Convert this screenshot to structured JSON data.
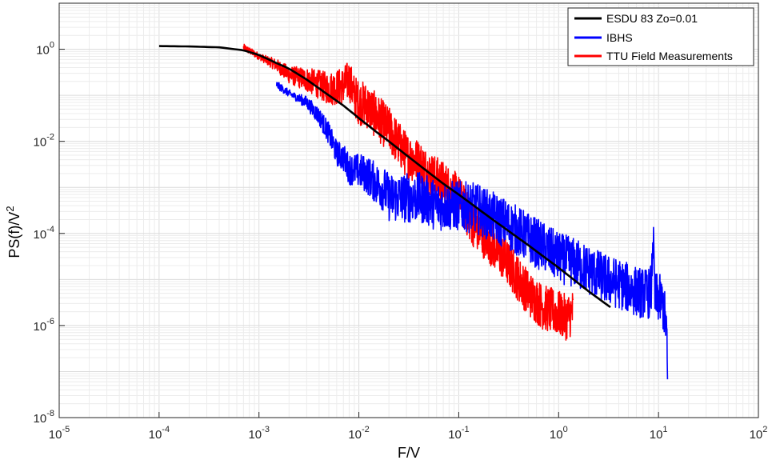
{
  "chart_data": {
    "type": "line",
    "title": "",
    "xlabel": "F/V",
    "ylabel_base": "PS(f)/V",
    "ylabel_sup": "2",
    "x_scale": "log",
    "y_scale": "log",
    "xlim": [
      1e-05,
      100
    ],
    "ylim": [
      1e-08,
      10
    ],
    "x_ticks": [
      {
        "base": "10",
        "exp": "-5",
        "value": 1e-05
      },
      {
        "base": "10",
        "exp": "-4",
        "value": 0.0001
      },
      {
        "base": "10",
        "exp": "-3",
        "value": 0.001
      },
      {
        "base": "10",
        "exp": "-2",
        "value": 0.01
      },
      {
        "base": "10",
        "exp": "-1",
        "value": 0.1
      },
      {
        "base": "10",
        "exp": "0",
        "value": 1
      },
      {
        "base": "10",
        "exp": "1",
        "value": 10
      },
      {
        "base": "10",
        "exp": "2",
        "value": 100
      }
    ],
    "y_ticks": [
      {
        "base": "10",
        "exp": "-8",
        "value": 1e-08
      },
      {
        "base": "10",
        "exp": "-6",
        "value": 1e-06
      },
      {
        "base": "10",
        "exp": "-4",
        "value": 0.0001
      },
      {
        "base": "10",
        "exp": "-2",
        "value": 0.01
      },
      {
        "base": "10",
        "exp": "0",
        "value": 1
      }
    ],
    "grid": true,
    "legend_position": "top-right",
    "series": [
      {
        "name": "ESDU 83 Zo=0.01",
        "color": "#000000",
        "noise": 0,
        "x": [
          0.0001,
          0.0002,
          0.0004,
          0.0007,
          0.001,
          0.0015,
          0.002,
          0.003,
          0.005,
          0.007,
          0.01,
          0.015,
          0.02,
          0.03,
          0.05,
          0.07,
          0.1,
          0.2,
          0.5,
          1,
          2,
          3.3
        ],
        "y": [
          1.17,
          1.15,
          1.1,
          0.95,
          0.75,
          0.5,
          0.38,
          0.22,
          0.1,
          0.06,
          0.032,
          0.016,
          0.01,
          0.005,
          0.0021,
          0.0012,
          0.0007,
          0.00023,
          5.5e-05,
          1.8e-05,
          5.5e-06,
          2.5e-06
        ]
      },
      {
        "name": "IBHS",
        "color": "#0000ff",
        "noise": 0.55,
        "x": [
          0.0015,
          0.002,
          0.003,
          0.004,
          0.005,
          0.006,
          0.007,
          0.008,
          0.01,
          0.012,
          0.015,
          0.018,
          0.02,
          0.025,
          0.03,
          0.04,
          0.05,
          0.06,
          0.08,
          0.1,
          0.15,
          0.2,
          0.3,
          0.5,
          0.7,
          1,
          1.5,
          2,
          3,
          4,
          5,
          6,
          7,
          8,
          8.5,
          8.8,
          9.2,
          10,
          11,
          12,
          12.3
        ],
        "y": [
          0.17,
          0.11,
          0.07,
          0.035,
          0.015,
          0.0055,
          0.0045,
          0.0025,
          0.0023,
          0.0019,
          0.0012,
          0.0009,
          0.0006,
          0.0006,
          0.0006,
          0.0006,
          0.0005,
          0.0004,
          0.0004,
          0.0004,
          0.00035,
          0.00025,
          0.00016,
          8e-05,
          5e-05,
          3e-05,
          2.2e-05,
          1.6e-05,
          1e-05,
          8e-06,
          6.5e-06,
          5.5e-06,
          5e-06,
          5e-06,
          6.5e-06,
          0.0001,
          4e-06,
          4e-06,
          3e-06,
          1e-06,
          7e-08
        ]
      },
      {
        "name": "TTU Field Measurements",
        "color": "#ff0000",
        "noise": 0.5,
        "x": [
          0.0007,
          0.001,
          0.0015,
          0.002,
          0.003,
          0.005,
          0.007,
          0.008,
          0.009,
          0.01,
          0.012,
          0.015,
          0.02,
          0.03,
          0.04,
          0.05,
          0.07,
          0.1,
          0.13,
          0.15,
          0.2,
          0.3,
          0.4,
          0.5,
          0.7,
          1,
          1.2,
          1.4
        ],
        "y": [
          1.1,
          0.7,
          0.45,
          0.28,
          0.22,
          0.14,
          0.16,
          0.22,
          0.1,
          0.07,
          0.06,
          0.035,
          0.018,
          0.005,
          0.0035,
          0.002,
          0.0012,
          0.0006,
          0.0002,
          0.00013,
          7e-05,
          2.5e-05,
          1e-05,
          5e-06,
          2.5e-06,
          1.8e-06,
          1.5e-06,
          2e-06
        ]
      }
    ]
  }
}
